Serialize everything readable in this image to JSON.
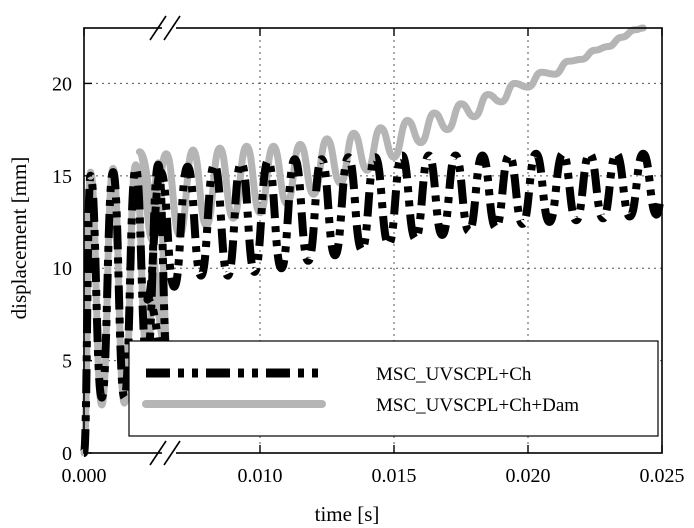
{
  "chart_data": {
    "type": "line",
    "title": "",
    "xlabel": "time [s]",
    "ylabel": "displacement [mm]",
    "xlim": [
      0.0,
      0.025
    ],
    "ylim": [
      0,
      23
    ],
    "x_ticks": [
      "0.000",
      "0.010",
      "0.015",
      "0.020",
      "0.025"
    ],
    "y_ticks": [
      "0",
      "5",
      "10",
      "15",
      "20"
    ],
    "grid": true,
    "broken_x_axis": true,
    "legend_position": "bottom",
    "series": [
      {
        "name": "MSC_UVSCPL+Ch",
        "style": "dash-dot-dot",
        "color": "#000000",
        "points": [
          [
            0.0,
            0.0
          ],
          [
            0.0004,
            15.0
          ],
          [
            0.0011,
            3.0
          ],
          [
            0.0018,
            15.2
          ],
          [
            0.0025,
            3.0
          ],
          [
            0.0032,
            15.4
          ],
          [
            0.0039,
            5.0
          ],
          [
            0.0046,
            15.6
          ],
          [
            0.0052,
            4.2
          ],
          [
            0.0058,
            8.3
          ],
          [
            0.0063,
            15.2
          ],
          [
            0.0068,
            9.0
          ],
          [
            0.0073,
            15.5
          ],
          [
            0.0078,
            9.6
          ],
          [
            0.0083,
            15.6
          ],
          [
            0.0088,
            9.6
          ],
          [
            0.0093,
            15.7
          ],
          [
            0.0098,
            9.8
          ],
          [
            0.0103,
            15.8
          ],
          [
            0.0108,
            10.0
          ],
          [
            0.0113,
            15.9
          ],
          [
            0.0118,
            10.4
          ],
          [
            0.0123,
            15.9
          ],
          [
            0.0128,
            10.7
          ],
          [
            0.0133,
            16.0
          ],
          [
            0.0138,
            11.0
          ],
          [
            0.0143,
            16.0
          ],
          [
            0.0148,
            11.3
          ],
          [
            0.0153,
            16.1
          ],
          [
            0.0158,
            11.6
          ],
          [
            0.0163,
            16.1
          ],
          [
            0.0168,
            11.8
          ],
          [
            0.0173,
            16.1
          ],
          [
            0.0178,
            12.0
          ],
          [
            0.0183,
            16.1
          ],
          [
            0.0188,
            12.2
          ],
          [
            0.0193,
            16.1
          ],
          [
            0.0198,
            12.4
          ],
          [
            0.0203,
            16.2
          ],
          [
            0.0208,
            12.5
          ],
          [
            0.0213,
            16.2
          ],
          [
            0.0218,
            12.6
          ],
          [
            0.0223,
            16.2
          ],
          [
            0.0228,
            12.7
          ],
          [
            0.0233,
            16.2
          ],
          [
            0.0238,
            12.8
          ],
          [
            0.0243,
            16.2
          ],
          [
            0.0248,
            12.9
          ],
          [
            0.025,
            13.8
          ]
        ]
      },
      {
        "name": "MSC_UVSCPL+Ch+Dam",
        "style": "solid",
        "color": "#b5b5b5",
        "points": [
          [
            0.0,
            0.0
          ],
          [
            0.0004,
            15.2
          ],
          [
            0.0011,
            2.6
          ],
          [
            0.0018,
            15.4
          ],
          [
            0.0025,
            2.7
          ],
          [
            0.0032,
            15.6
          ],
          [
            0.0039,
            5.3
          ],
          [
            0.0046,
            15.7
          ],
          [
            0.0052,
            5.5
          ],
          [
            0.0055,
            16.3
          ],
          [
            0.006,
            11.5
          ],
          [
            0.0065,
            16.2
          ],
          [
            0.007,
            11.8
          ],
          [
            0.0075,
            16.4
          ],
          [
            0.008,
            12.3
          ],
          [
            0.0085,
            16.5
          ],
          [
            0.009,
            12.7
          ],
          [
            0.0095,
            16.6
          ],
          [
            0.01,
            13.0
          ],
          [
            0.0105,
            16.6
          ],
          [
            0.011,
            13.5
          ],
          [
            0.0115,
            16.7
          ],
          [
            0.012,
            14.0
          ],
          [
            0.0125,
            17.0
          ],
          [
            0.013,
            14.6
          ],
          [
            0.0135,
            17.3
          ],
          [
            0.014,
            15.3
          ],
          [
            0.0145,
            17.6
          ],
          [
            0.015,
            16.0
          ],
          [
            0.0155,
            18.0
          ],
          [
            0.016,
            16.8
          ],
          [
            0.0165,
            18.4
          ],
          [
            0.017,
            17.5
          ],
          [
            0.0175,
            18.9
          ],
          [
            0.018,
            18.2
          ],
          [
            0.0185,
            19.4
          ],
          [
            0.019,
            19.0
          ],
          [
            0.0195,
            20.0
          ],
          [
            0.02,
            19.8
          ],
          [
            0.0205,
            20.6
          ],
          [
            0.021,
            20.5
          ],
          [
            0.0215,
            21.2
          ],
          [
            0.022,
            21.3
          ],
          [
            0.0225,
            21.8
          ],
          [
            0.023,
            22.0
          ],
          [
            0.0235,
            22.5
          ],
          [
            0.024,
            22.9
          ],
          [
            0.0243,
            23.0
          ]
        ]
      }
    ]
  }
}
